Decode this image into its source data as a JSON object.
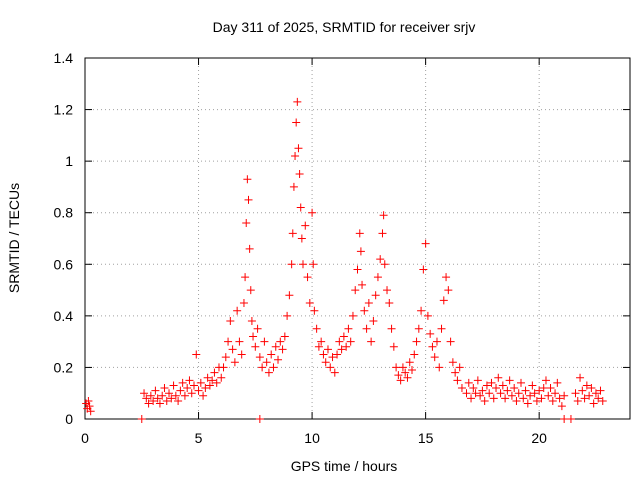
{
  "chart_data": {
    "type": "scatter",
    "title": "Day 311 of 2025, SRMTID for receiver srjv",
    "xlabel": "GPS time / hours",
    "ylabel": "SRMTID / TECUs",
    "xlim": [
      0,
      24
    ],
    "ylim": [
      0,
      1.4
    ],
    "xticks": [
      0,
      5,
      10,
      15,
      20
    ],
    "xtick_labels": [
      "0",
      "5",
      "10",
      "15",
      "20"
    ],
    "yticks": [
      0,
      0.2,
      0.4,
      0.6,
      0.8,
      1,
      1.2,
      1.4
    ],
    "ytick_labels": [
      "0",
      "0.2",
      "0.4",
      "0.6",
      "0.8",
      "1",
      "1.2",
      "1.4"
    ],
    "grid": true,
    "marker": "plus",
    "series": [
      {
        "name": "SRMTID",
        "color": "#ff0000",
        "points": [
          [
            0.05,
            0.06
          ],
          [
            0.1,
            0.04
          ],
          [
            0.15,
            0.07
          ],
          [
            0.2,
            0.05
          ],
          [
            0.25,
            0.03
          ],
          [
            2.6,
            0.1
          ],
          [
            2.7,
            0.08
          ],
          [
            2.8,
            0.06
          ],
          [
            2.9,
            0.09
          ],
          [
            3.0,
            0.07
          ],
          [
            3.1,
            0.11
          ],
          [
            3.2,
            0.08
          ],
          [
            3.3,
            0.06
          ],
          [
            3.4,
            0.09
          ],
          [
            3.5,
            0.12
          ],
          [
            3.6,
            0.07
          ],
          [
            3.7,
            0.1
          ],
          [
            3.8,
            0.08
          ],
          [
            3.9,
            0.13
          ],
          [
            4.0,
            0.09
          ],
          [
            4.1,
            0.07
          ],
          [
            4.2,
            0.11
          ],
          [
            4.3,
            0.14
          ],
          [
            4.4,
            0.09
          ],
          [
            4.5,
            0.12
          ],
          [
            4.6,
            0.15
          ],
          [
            4.7,
            0.1
          ],
          [
            4.8,
            0.13
          ],
          [
            4.9,
            0.25
          ],
          [
            5.0,
            0.11
          ],
          [
            5.1,
            0.14
          ],
          [
            5.2,
            0.09
          ],
          [
            5.3,
            0.12
          ],
          [
            5.4,
            0.16
          ],
          [
            5.5,
            0.13
          ],
          [
            5.6,
            0.15
          ],
          [
            5.7,
            0.18
          ],
          [
            5.8,
            0.14
          ],
          [
            5.9,
            0.2
          ],
          [
            6.0,
            0.16
          ],
          [
            6.1,
            0.2
          ],
          [
            6.2,
            0.24
          ],
          [
            6.3,
            0.3
          ],
          [
            6.4,
            0.38
          ],
          [
            6.5,
            0.27
          ],
          [
            6.6,
            0.22
          ],
          [
            6.7,
            0.42
          ],
          [
            6.8,
            0.3
          ],
          [
            6.9,
            0.25
          ],
          [
            7.0,
            0.45
          ],
          [
            7.05,
            0.55
          ],
          [
            7.1,
            0.76
          ],
          [
            7.15,
            0.93
          ],
          [
            7.2,
            0.85
          ],
          [
            7.25,
            0.66
          ],
          [
            7.3,
            0.5
          ],
          [
            7.35,
            0.38
          ],
          [
            7.4,
            0.32
          ],
          [
            7.5,
            0.28
          ],
          [
            7.6,
            0.35
          ],
          [
            7.7,
            0.24
          ],
          [
            7.8,
            0.2
          ],
          [
            7.9,
            0.3
          ],
          [
            8.0,
            0.22
          ],
          [
            8.1,
            0.18
          ],
          [
            8.2,
            0.25
          ],
          [
            8.3,
            0.2
          ],
          [
            8.4,
            0.28
          ],
          [
            8.5,
            0.23
          ],
          [
            8.6,
            0.3
          ],
          [
            8.7,
            0.27
          ],
          [
            8.8,
            0.32
          ],
          [
            8.9,
            0.4
          ],
          [
            9.0,
            0.48
          ],
          [
            9.1,
            0.6
          ],
          [
            9.15,
            0.72
          ],
          [
            9.2,
            0.9
          ],
          [
            9.25,
            1.02
          ],
          [
            9.3,
            1.15
          ],
          [
            9.35,
            1.23
          ],
          [
            9.4,
            1.05
          ],
          [
            9.45,
            0.95
          ],
          [
            9.5,
            0.82
          ],
          [
            9.55,
            0.7
          ],
          [
            9.6,
            0.6
          ],
          [
            9.7,
            0.75
          ],
          [
            9.8,
            0.55
          ],
          [
            9.9,
            0.45
          ],
          [
            10.0,
            0.8
          ],
          [
            10.05,
            0.6
          ],
          [
            10.1,
            0.42
          ],
          [
            10.2,
            0.35
          ],
          [
            10.3,
            0.28
          ],
          [
            10.4,
            0.3
          ],
          [
            10.5,
            0.25
          ],
          [
            10.6,
            0.22
          ],
          [
            10.7,
            0.27
          ],
          [
            10.8,
            0.2
          ],
          [
            10.9,
            0.24
          ],
          [
            11.0,
            0.18
          ],
          [
            11.1,
            0.25
          ],
          [
            11.2,
            0.3
          ],
          [
            11.3,
            0.27
          ],
          [
            11.4,
            0.32
          ],
          [
            11.5,
            0.28
          ],
          [
            11.6,
            0.35
          ],
          [
            11.7,
            0.3
          ],
          [
            11.8,
            0.4
          ],
          [
            11.9,
            0.5
          ],
          [
            12.0,
            0.58
          ],
          [
            12.1,
            0.72
          ],
          [
            12.15,
            0.65
          ],
          [
            12.2,
            0.52
          ],
          [
            12.3,
            0.42
          ],
          [
            12.4,
            0.35
          ],
          [
            12.5,
            0.45
          ],
          [
            12.6,
            0.3
          ],
          [
            12.7,
            0.38
          ],
          [
            12.8,
            0.48
          ],
          [
            12.9,
            0.55
          ],
          [
            13.0,
            0.62
          ],
          [
            13.1,
            0.72
          ],
          [
            13.15,
            0.79
          ],
          [
            13.2,
            0.6
          ],
          [
            13.3,
            0.5
          ],
          [
            13.4,
            0.45
          ],
          [
            13.5,
            0.35
          ],
          [
            13.6,
            0.28
          ],
          [
            13.7,
            0.2
          ],
          [
            13.8,
            0.17
          ],
          [
            13.9,
            0.15
          ],
          [
            14.0,
            0.2
          ],
          [
            14.1,
            0.18
          ],
          [
            14.2,
            0.16
          ],
          [
            14.3,
            0.22
          ],
          [
            14.4,
            0.19
          ],
          [
            14.5,
            0.25
          ],
          [
            14.6,
            0.3
          ],
          [
            14.7,
            0.35
          ],
          [
            14.8,
            0.42
          ],
          [
            14.9,
            0.58
          ],
          [
            15.0,
            0.68
          ],
          [
            15.1,
            0.4
          ],
          [
            15.2,
            0.33
          ],
          [
            15.3,
            0.28
          ],
          [
            15.4,
            0.24
          ],
          [
            15.5,
            0.3
          ],
          [
            15.6,
            0.2
          ],
          [
            15.7,
            0.35
          ],
          [
            15.8,
            0.46
          ],
          [
            15.9,
            0.55
          ],
          [
            16.0,
            0.5
          ],
          [
            16.1,
            0.3
          ],
          [
            16.2,
            0.22
          ],
          [
            16.3,
            0.18
          ],
          [
            16.4,
            0.15
          ],
          [
            16.5,
            0.2
          ],
          [
            16.6,
            0.12
          ],
          [
            16.8,
            0.1
          ],
          [
            16.9,
            0.14
          ],
          [
            17.0,
            0.08
          ],
          [
            17.1,
            0.12
          ],
          [
            17.2,
            0.1
          ],
          [
            17.3,
            0.15
          ],
          [
            17.4,
            0.09
          ],
          [
            17.5,
            0.11
          ],
          [
            17.6,
            0.07
          ],
          [
            17.7,
            0.13
          ],
          [
            17.8,
            0.1
          ],
          [
            17.9,
            0.14
          ],
          [
            18.0,
            0.08
          ],
          [
            18.1,
            0.12
          ],
          [
            18.2,
            0.16
          ],
          [
            18.3,
            0.1
          ],
          [
            18.4,
            0.13
          ],
          [
            18.5,
            0.08
          ],
          [
            18.6,
            0.11
          ],
          [
            18.7,
            0.15
          ],
          [
            18.8,
            0.09
          ],
          [
            18.9,
            0.12
          ],
          [
            19.0,
            0.07
          ],
          [
            19.1,
            0.1
          ],
          [
            19.2,
            0.14
          ],
          [
            19.3,
            0.08
          ],
          [
            19.4,
            0.11
          ],
          [
            19.5,
            0.06
          ],
          [
            19.6,
            0.09
          ],
          [
            19.7,
            0.13
          ],
          [
            19.8,
            0.1
          ],
          [
            19.9,
            0.07
          ],
          [
            20.0,
            0.11
          ],
          [
            20.1,
            0.08
          ],
          [
            20.2,
            0.12
          ],
          [
            20.3,
            0.15
          ],
          [
            20.4,
            0.09
          ],
          [
            20.5,
            0.12
          ],
          [
            20.6,
            0.07
          ],
          [
            20.7,
            0.1
          ],
          [
            20.8,
            0.14
          ],
          [
            20.9,
            0.08
          ],
          [
            21.0,
            0.05
          ],
          [
            21.1,
            0.09
          ],
          [
            21.6,
            0.1
          ],
          [
            21.7,
            0.07
          ],
          [
            21.8,
            0.16
          ],
          [
            21.9,
            0.11
          ],
          [
            22.0,
            0.08
          ],
          [
            22.1,
            0.13
          ],
          [
            22.2,
            0.09
          ],
          [
            22.3,
            0.12
          ],
          [
            22.4,
            0.06
          ],
          [
            22.5,
            0.1
          ],
          [
            22.6,
            0.08
          ],
          [
            22.7,
            0.11
          ],
          [
            22.8,
            0.07
          ],
          [
            2.5,
            0.0
          ],
          [
            7.7,
            0.0
          ],
          [
            21.1,
            0.0
          ],
          [
            21.4,
            0.0
          ]
        ]
      }
    ]
  }
}
